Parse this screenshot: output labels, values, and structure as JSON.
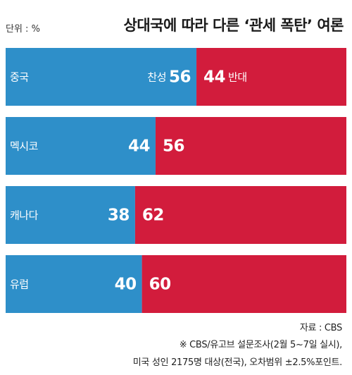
{
  "unit_label": "단위 : %",
  "chart_data": {
    "type": "bar",
    "title": "상대국에 따라 다른 ‘관세 폭탄’ 여론",
    "categories": [
      "중국",
      "멕시코",
      "캐나다",
      "유럽"
    ],
    "series": [
      {
        "name": "찬성",
        "values": [
          56,
          44,
          38,
          40
        ],
        "color": "#2e8fc9"
      },
      {
        "name": "반대",
        "values": [
          44,
          56,
          62,
          60
        ],
        "color": "#d21c3c"
      }
    ],
    "stacked": true,
    "orientation": "horizontal",
    "xlim": [
      0,
      100
    ],
    "legend": "inline on first bar"
  },
  "footer": {
    "source": "자료 : CBS",
    "note_line1": "※ CBS/유고브 설문조사(2월 5~7일 실시),",
    "note_line2": "미국 성인 2175명 대상(전국), 오차범위 ±2.5%포인트."
  }
}
